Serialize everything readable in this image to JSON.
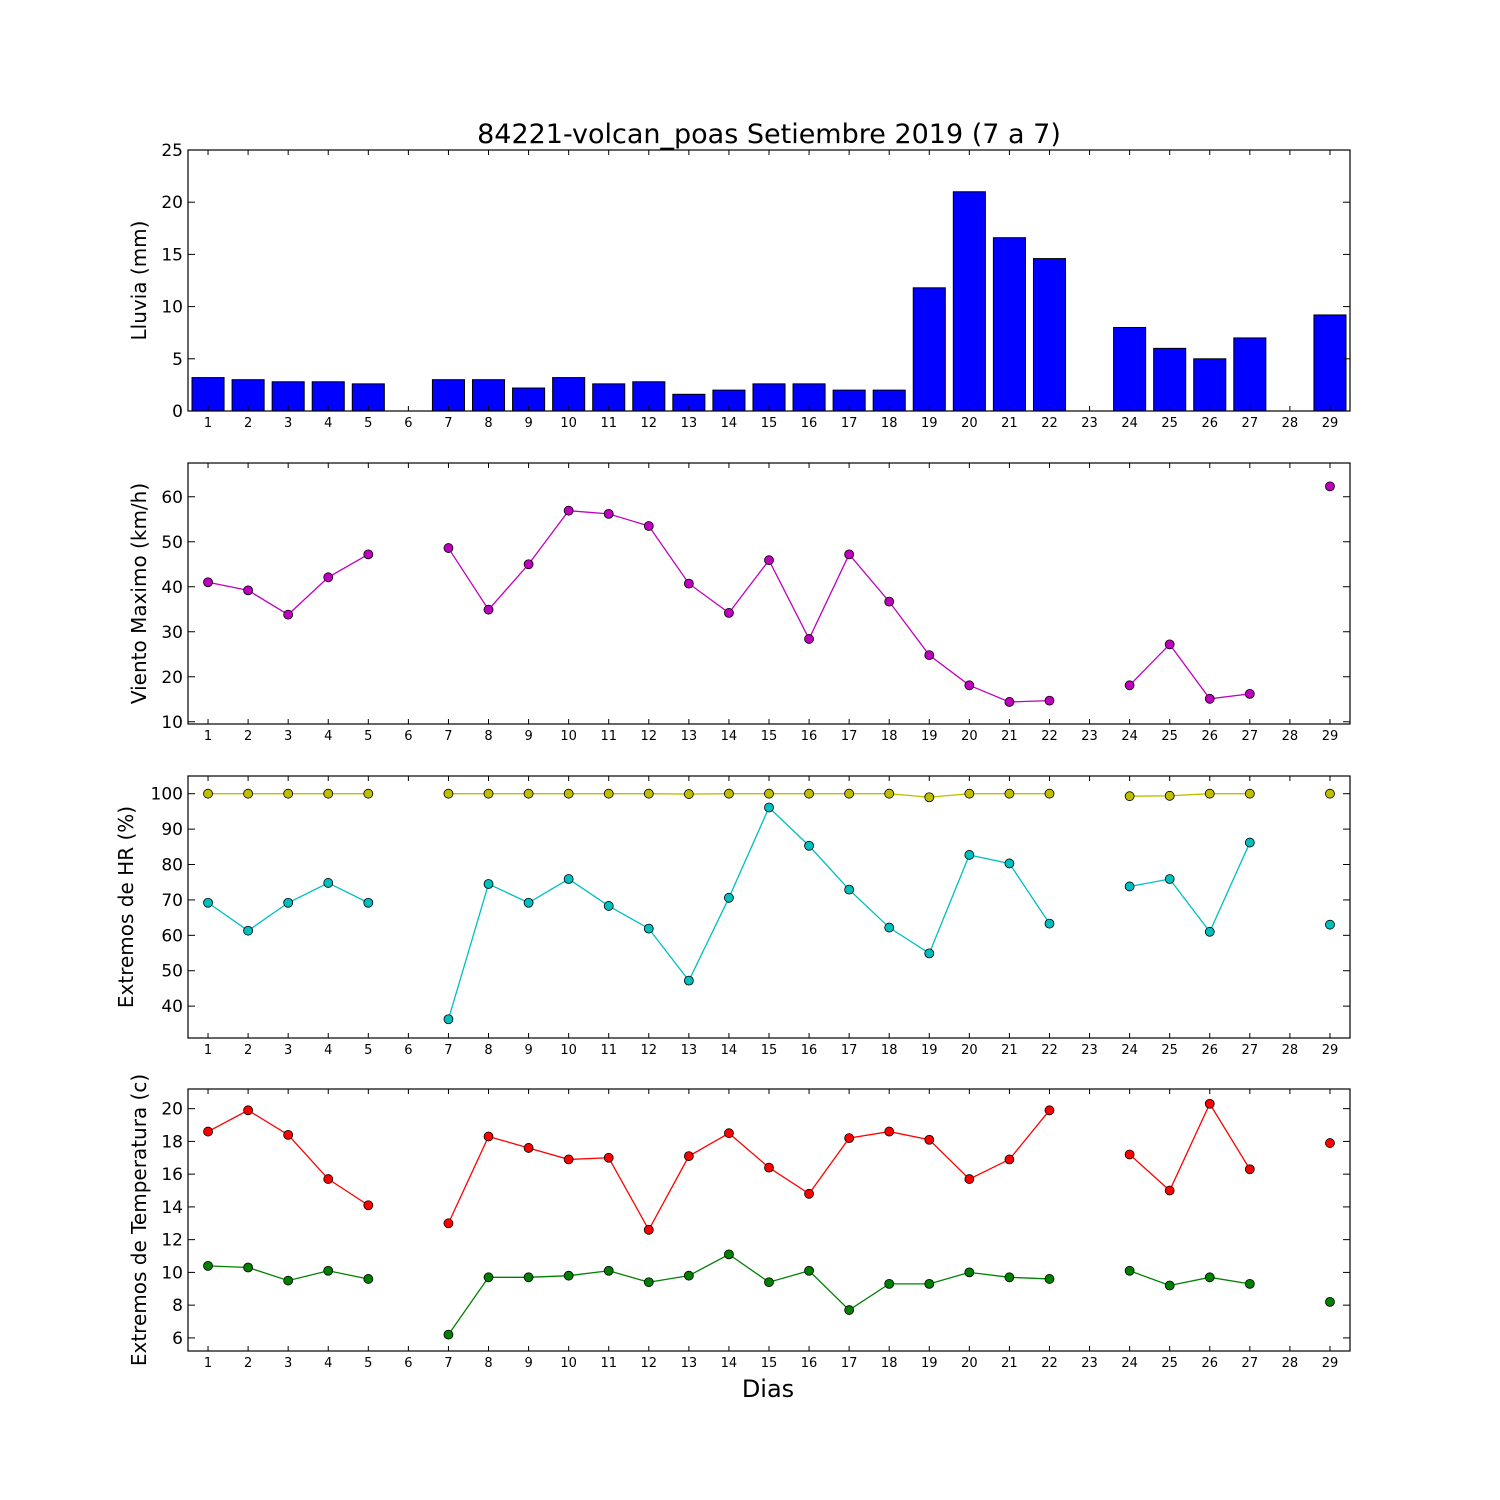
{
  "figure_title": "84221-volcan_poas Setiembre 2019  (7 a 7)",
  "x_axis_label": "Dias",
  "chart_data": [
    {
      "type": "bar",
      "ylabel": "Lluvia (mm)",
      "ylim": [
        0,
        25
      ],
      "yticks": [
        0,
        5,
        10,
        15,
        20,
        25
      ],
      "categories": [
        1,
        2,
        3,
        4,
        5,
        6,
        7,
        8,
        9,
        10,
        11,
        12,
        13,
        14,
        15,
        16,
        17,
        18,
        19,
        20,
        21,
        22,
        23,
        24,
        25,
        26,
        27,
        28,
        29
      ],
      "series": [
        {
          "color": "#0000ff",
          "values": [
            3.2,
            3.0,
            2.8,
            2.8,
            2.6,
            null,
            3.0,
            3.0,
            2.2,
            3.2,
            2.6,
            2.8,
            1.6,
            2.0,
            2.6,
            2.6,
            2.0,
            2.0,
            11.8,
            21.0,
            16.6,
            14.6,
            null,
            8.0,
            6.0,
            5.0,
            7.0,
            null,
            9.2
          ]
        }
      ]
    },
    {
      "type": "line",
      "ylabel": "Viento Maximo (km/h)",
      "ylim": [
        9.5,
        67.5
      ],
      "yticks": [
        10,
        20,
        30,
        40,
        50,
        60
      ],
      "x": [
        1,
        2,
        3,
        4,
        5,
        6,
        7,
        8,
        9,
        10,
        11,
        12,
        13,
        14,
        15,
        16,
        17,
        18,
        19,
        20,
        21,
        22,
        23,
        24,
        25,
        26,
        27,
        28,
        29
      ],
      "series": [
        {
          "color": "#bf00bf",
          "values": [
            41.0,
            39.2,
            33.8,
            42.1,
            47.2,
            null,
            48.6,
            34.9,
            45.0,
            56.9,
            56.2,
            53.5,
            40.7,
            34.2,
            45.9,
            28.4,
            47.2,
            36.7,
            24.8,
            18.1,
            14.4,
            14.7,
            null,
            18.1,
            27.2,
            15.1,
            16.2,
            null,
            62.3
          ]
        }
      ]
    },
    {
      "type": "line",
      "ylabel": "Extremos de HR (%)",
      "ylim": [
        31,
        105
      ],
      "yticks": [
        40,
        50,
        60,
        70,
        80,
        90,
        100
      ],
      "x": [
        1,
        2,
        3,
        4,
        5,
        6,
        7,
        8,
        9,
        10,
        11,
        12,
        13,
        14,
        15,
        16,
        17,
        18,
        19,
        20,
        21,
        22,
        23,
        24,
        25,
        26,
        27,
        28,
        29
      ],
      "series": [
        {
          "color": "#bfbf00",
          "values": [
            100,
            100,
            100,
            100,
            100,
            null,
            100,
            100,
            100,
            100,
            100,
            100,
            99.9,
            100,
            100,
            100,
            100,
            100,
            99.0,
            100,
            100,
            100,
            null,
            99.3,
            99.4,
            100,
            100,
            null,
            100
          ]
        },
        {
          "color": "#00bfbf",
          "values": [
            69.2,
            61.3,
            69.2,
            74.8,
            69.2,
            null,
            36.3,
            74.5,
            69.2,
            75.9,
            68.3,
            61.9,
            47.2,
            70.6,
            96.1,
            85.3,
            72.9,
            62.2,
            54.9,
            82.7,
            80.3,
            63.3,
            null,
            73.8,
            75.9,
            61.0,
            86.2,
            null,
            63.0
          ]
        }
      ]
    },
    {
      "type": "line",
      "ylabel": "Extremos de Temperatura (c)",
      "ylim": [
        5.2,
        21.2
      ],
      "yticks": [
        6,
        8,
        10,
        12,
        14,
        16,
        18,
        20
      ],
      "x": [
        1,
        2,
        3,
        4,
        5,
        6,
        7,
        8,
        9,
        10,
        11,
        12,
        13,
        14,
        15,
        16,
        17,
        18,
        19,
        20,
        21,
        22,
        23,
        24,
        25,
        26,
        27,
        28,
        29
      ],
      "series": [
        {
          "color": "#ff0000",
          "values": [
            18.6,
            19.9,
            18.4,
            15.7,
            14.1,
            null,
            13.0,
            18.3,
            17.6,
            16.9,
            17.0,
            12.6,
            17.1,
            18.5,
            16.4,
            14.8,
            18.2,
            18.6,
            18.1,
            15.7,
            16.9,
            19.9,
            null,
            17.2,
            15.0,
            20.3,
            16.3,
            null,
            17.9
          ]
        },
        {
          "color": "#008000",
          "values": [
            10.4,
            10.3,
            9.5,
            10.1,
            9.6,
            null,
            6.2,
            9.7,
            9.7,
            9.8,
            10.1,
            9.4,
            9.8,
            11.1,
            9.4,
            10.1,
            7.7,
            9.3,
            9.3,
            10.0,
            9.7,
            9.6,
            null,
            10.1,
            9.2,
            9.7,
            9.3,
            null,
            8.2
          ]
        }
      ]
    }
  ]
}
